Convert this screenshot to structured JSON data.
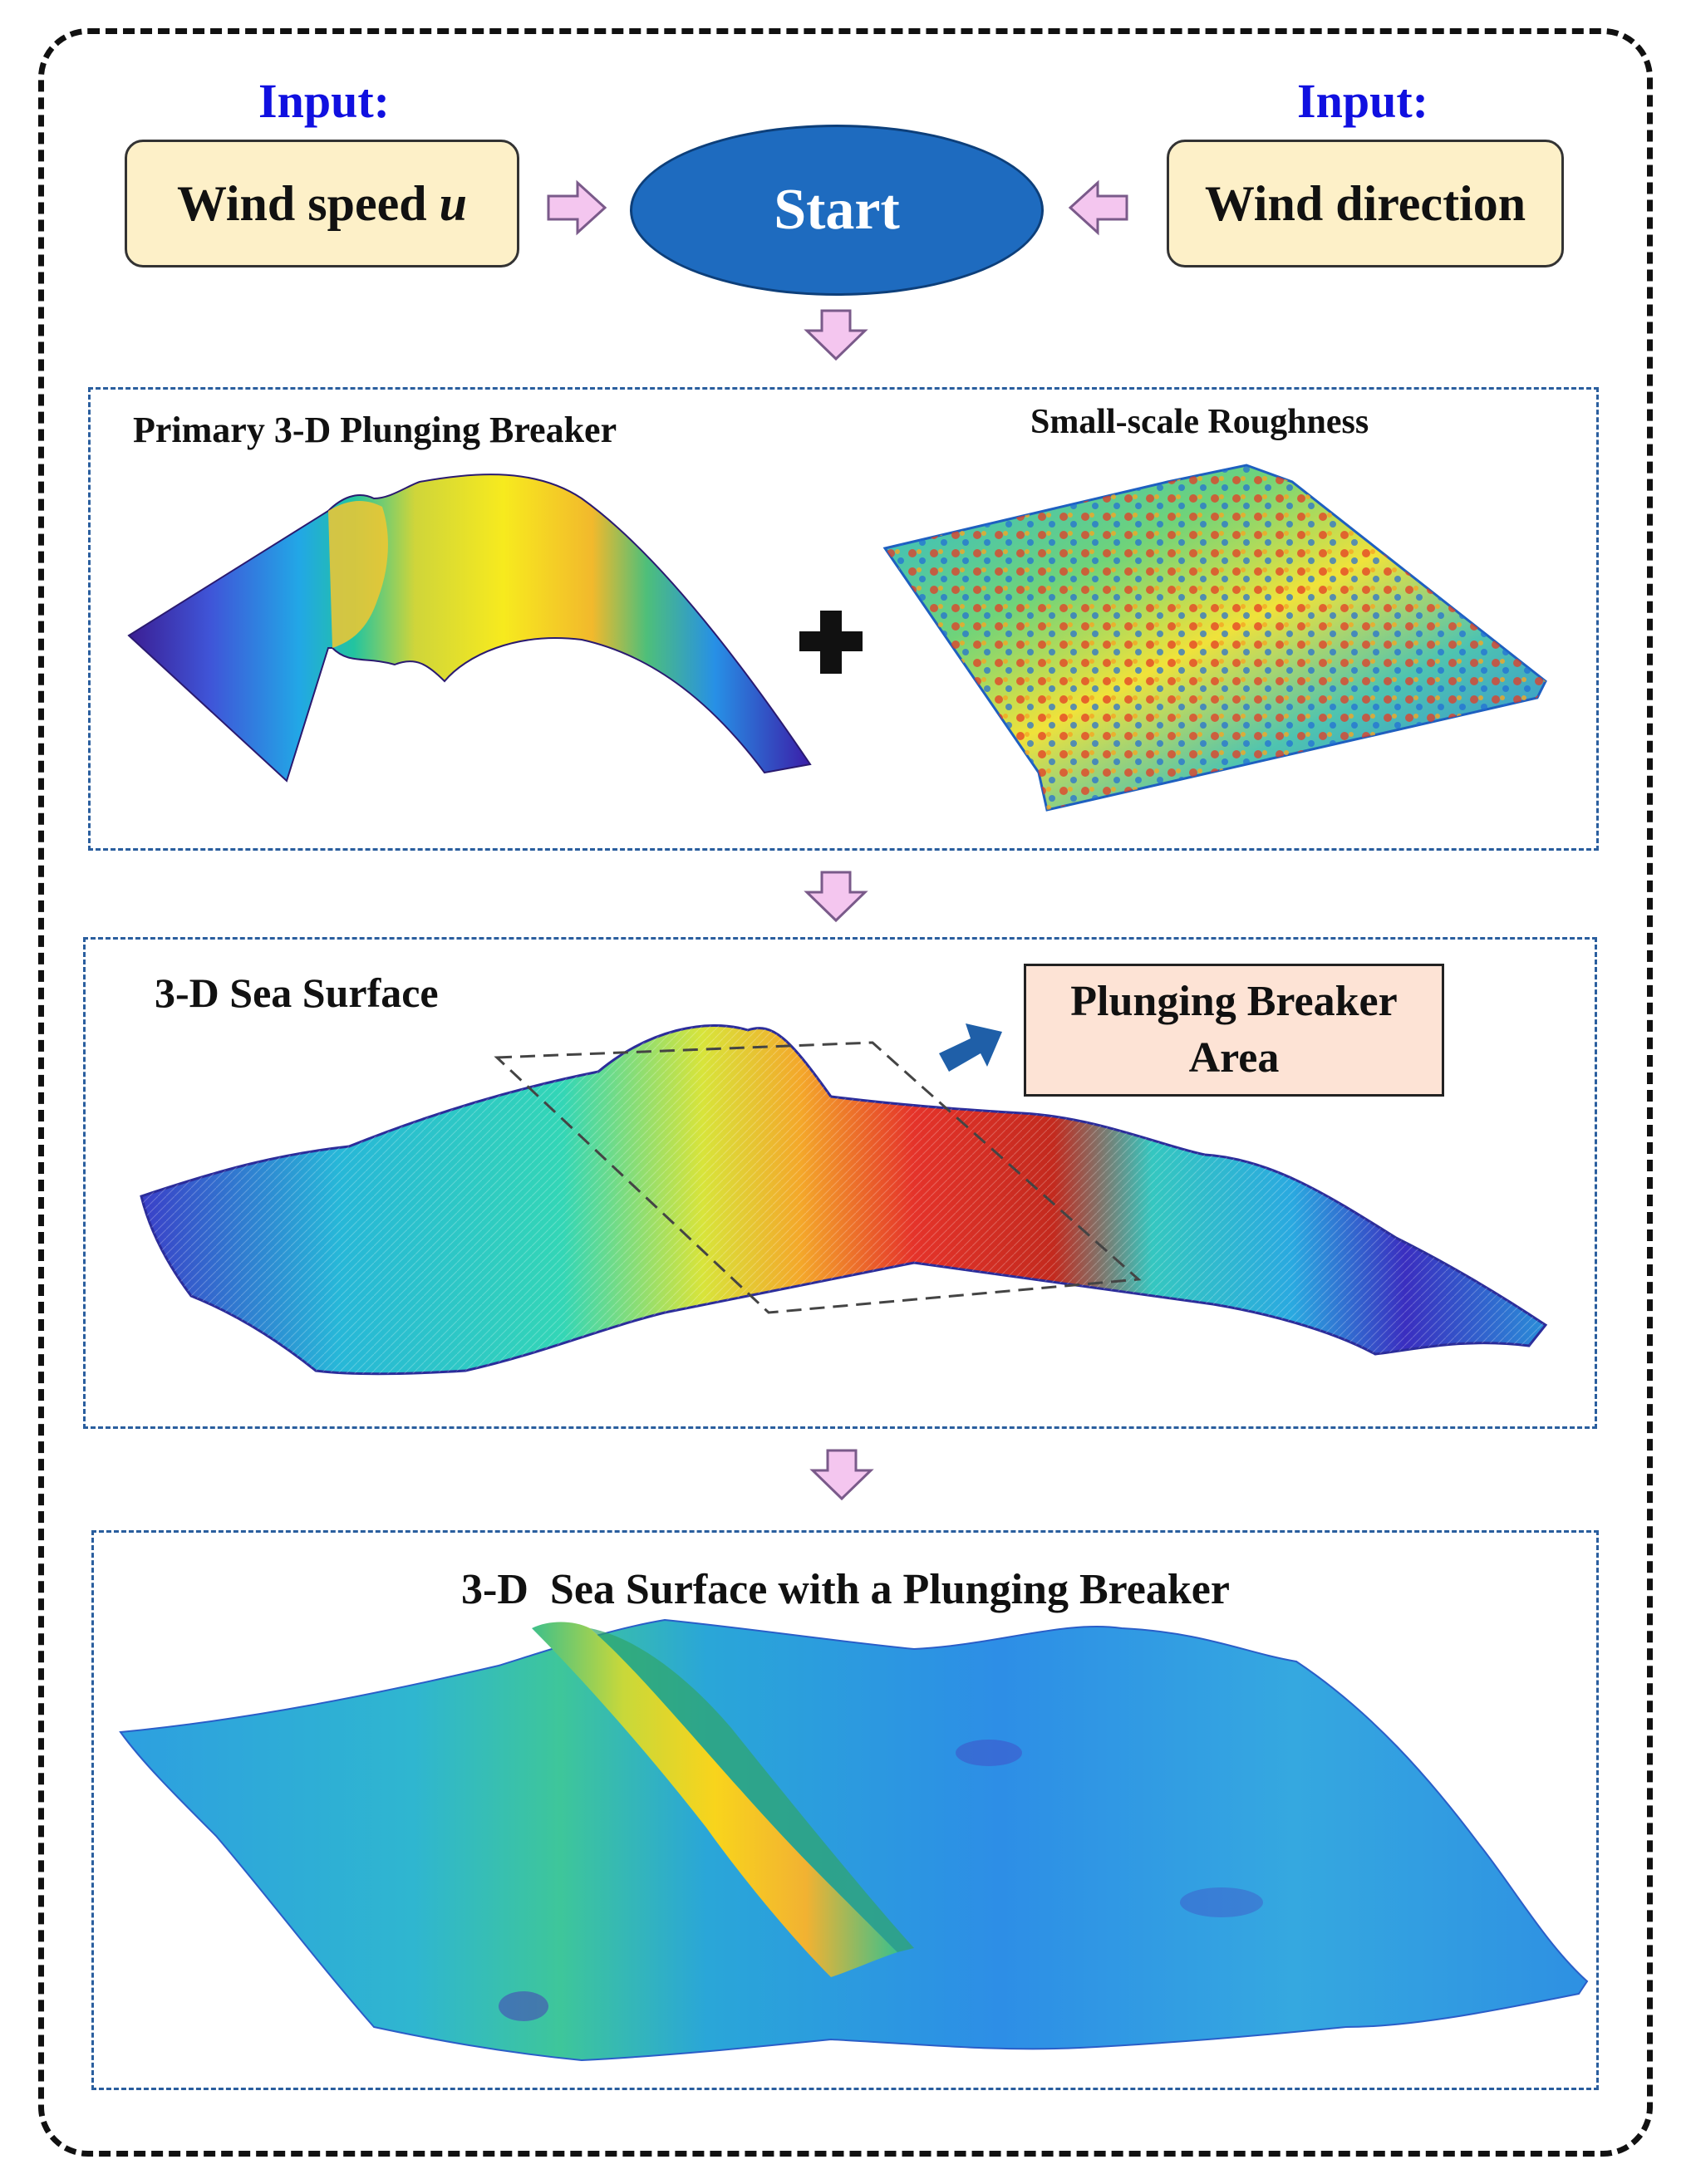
{
  "inputs": {
    "left_label": "Input:",
    "left_box": "Wind speed ",
    "left_box_var": "u",
    "right_label": "Input:",
    "right_box": "Wind direction"
  },
  "start": {
    "label": "Start"
  },
  "panel1": {
    "left_title": "Primary 3-D Plunging Breaker",
    "right_title": "Small-scale Roughness",
    "operator": "+"
  },
  "panel2": {
    "title": "3-D Sea Surface",
    "callout": [
      "Plunging Breaker",
      "Area"
    ]
  },
  "panel3": {
    "title": "3-D  Sea Surface with a Plunging Breaker"
  },
  "colors": {
    "input_text": "#1010e0",
    "input_box_fill": "#fdf0c8",
    "start_fill": "#1e6bbf",
    "arrow_fill": "#f4c6ef",
    "arrow_stroke": "#7a5a8a",
    "panel_border": "#2a5e9e",
    "callout_fill": "#fde3d5",
    "callout_arrow": "#1f5fa8"
  }
}
